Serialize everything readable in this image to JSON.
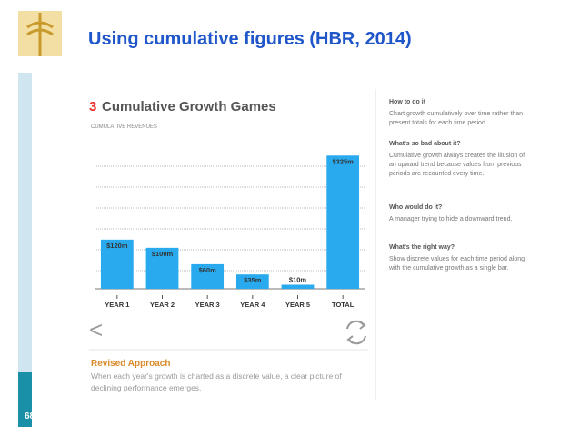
{
  "slide_title": "Using cumulative figures (HBR, 2014)",
  "page_number": "68",
  "chart_data": {
    "type": "bar",
    "number": "3",
    "title": "Cumulative Growth Games",
    "subtitle": "CUMULATIVE REVENUES",
    "categories": [
      "YEAR 1",
      "YEAR 2",
      "YEAR 3",
      "YEAR 4",
      "YEAR 5",
      "TOTAL"
    ],
    "values": [
      120,
      100,
      60,
      35,
      10,
      325
    ],
    "value_labels": [
      "$120m",
      "$100m",
      "$60m",
      "$35m",
      "$10m",
      "$325m"
    ],
    "color": "#29aaef",
    "ylim": [
      0,
      350
    ]
  },
  "revised": {
    "title": "Revised Approach",
    "text": "When each year's growth is charted as a discrete value, a clear picture of declining performance emerges."
  },
  "notes": [
    {
      "heading": "How to do it",
      "text": "Chart growth cumulatively over time rather than present totals for each time period."
    },
    {
      "heading": "What's so bad about it?",
      "text": "Cumulative growth always creates the illusion of an upward trend because values from previous periods are recounted every time."
    },
    {
      "heading": "Who would do it?",
      "text": "A manager trying to hide a downward trend."
    },
    {
      "heading": "What's the right way?",
      "text": "Show discrete values for each time period along with the cumulative growth as a single bar."
    }
  ]
}
